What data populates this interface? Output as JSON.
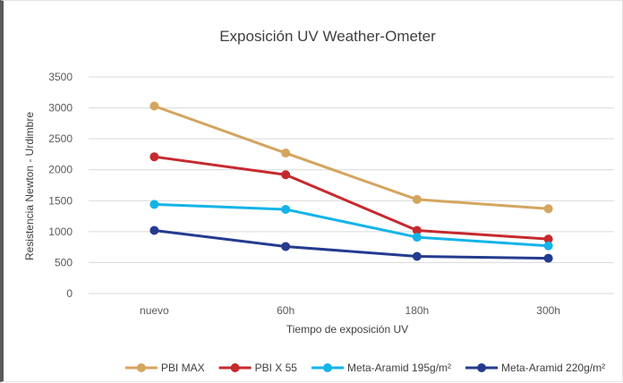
{
  "chart_data": {
    "type": "line",
    "title": "Exposición UV Weather-Ometer",
    "xlabel": "Tiempo de exposición UV",
    "ylabel": "Resistencia Newton - Urdimbre",
    "categories": [
      "nuevo",
      "60h",
      "180h",
      "300h"
    ],
    "ylim": [
      0,
      3500
    ],
    "yticks": [
      0,
      500,
      1000,
      1500,
      2000,
      2500,
      3000,
      3500
    ],
    "grid": true,
    "legend_position": "bottom",
    "series": [
      {
        "name": "PBI MAX",
        "color": "#D4A55F",
        "values": [
          3030,
          2270,
          1520,
          1370
        ]
      },
      {
        "name": "PBI X 55",
        "color": "#C62A2F",
        "values": [
          2210,
          1920,
          1020,
          880
        ]
      },
      {
        "name": "Meta-Aramid 195g/m²",
        "color": "#14B4E8",
        "values": [
          1440,
          1360,
          910,
          770
        ]
      },
      {
        "name": "Meta-Aramid 220g/m²",
        "color": "#243B8F",
        "values": [
          1020,
          760,
          600,
          570
        ]
      }
    ]
  }
}
